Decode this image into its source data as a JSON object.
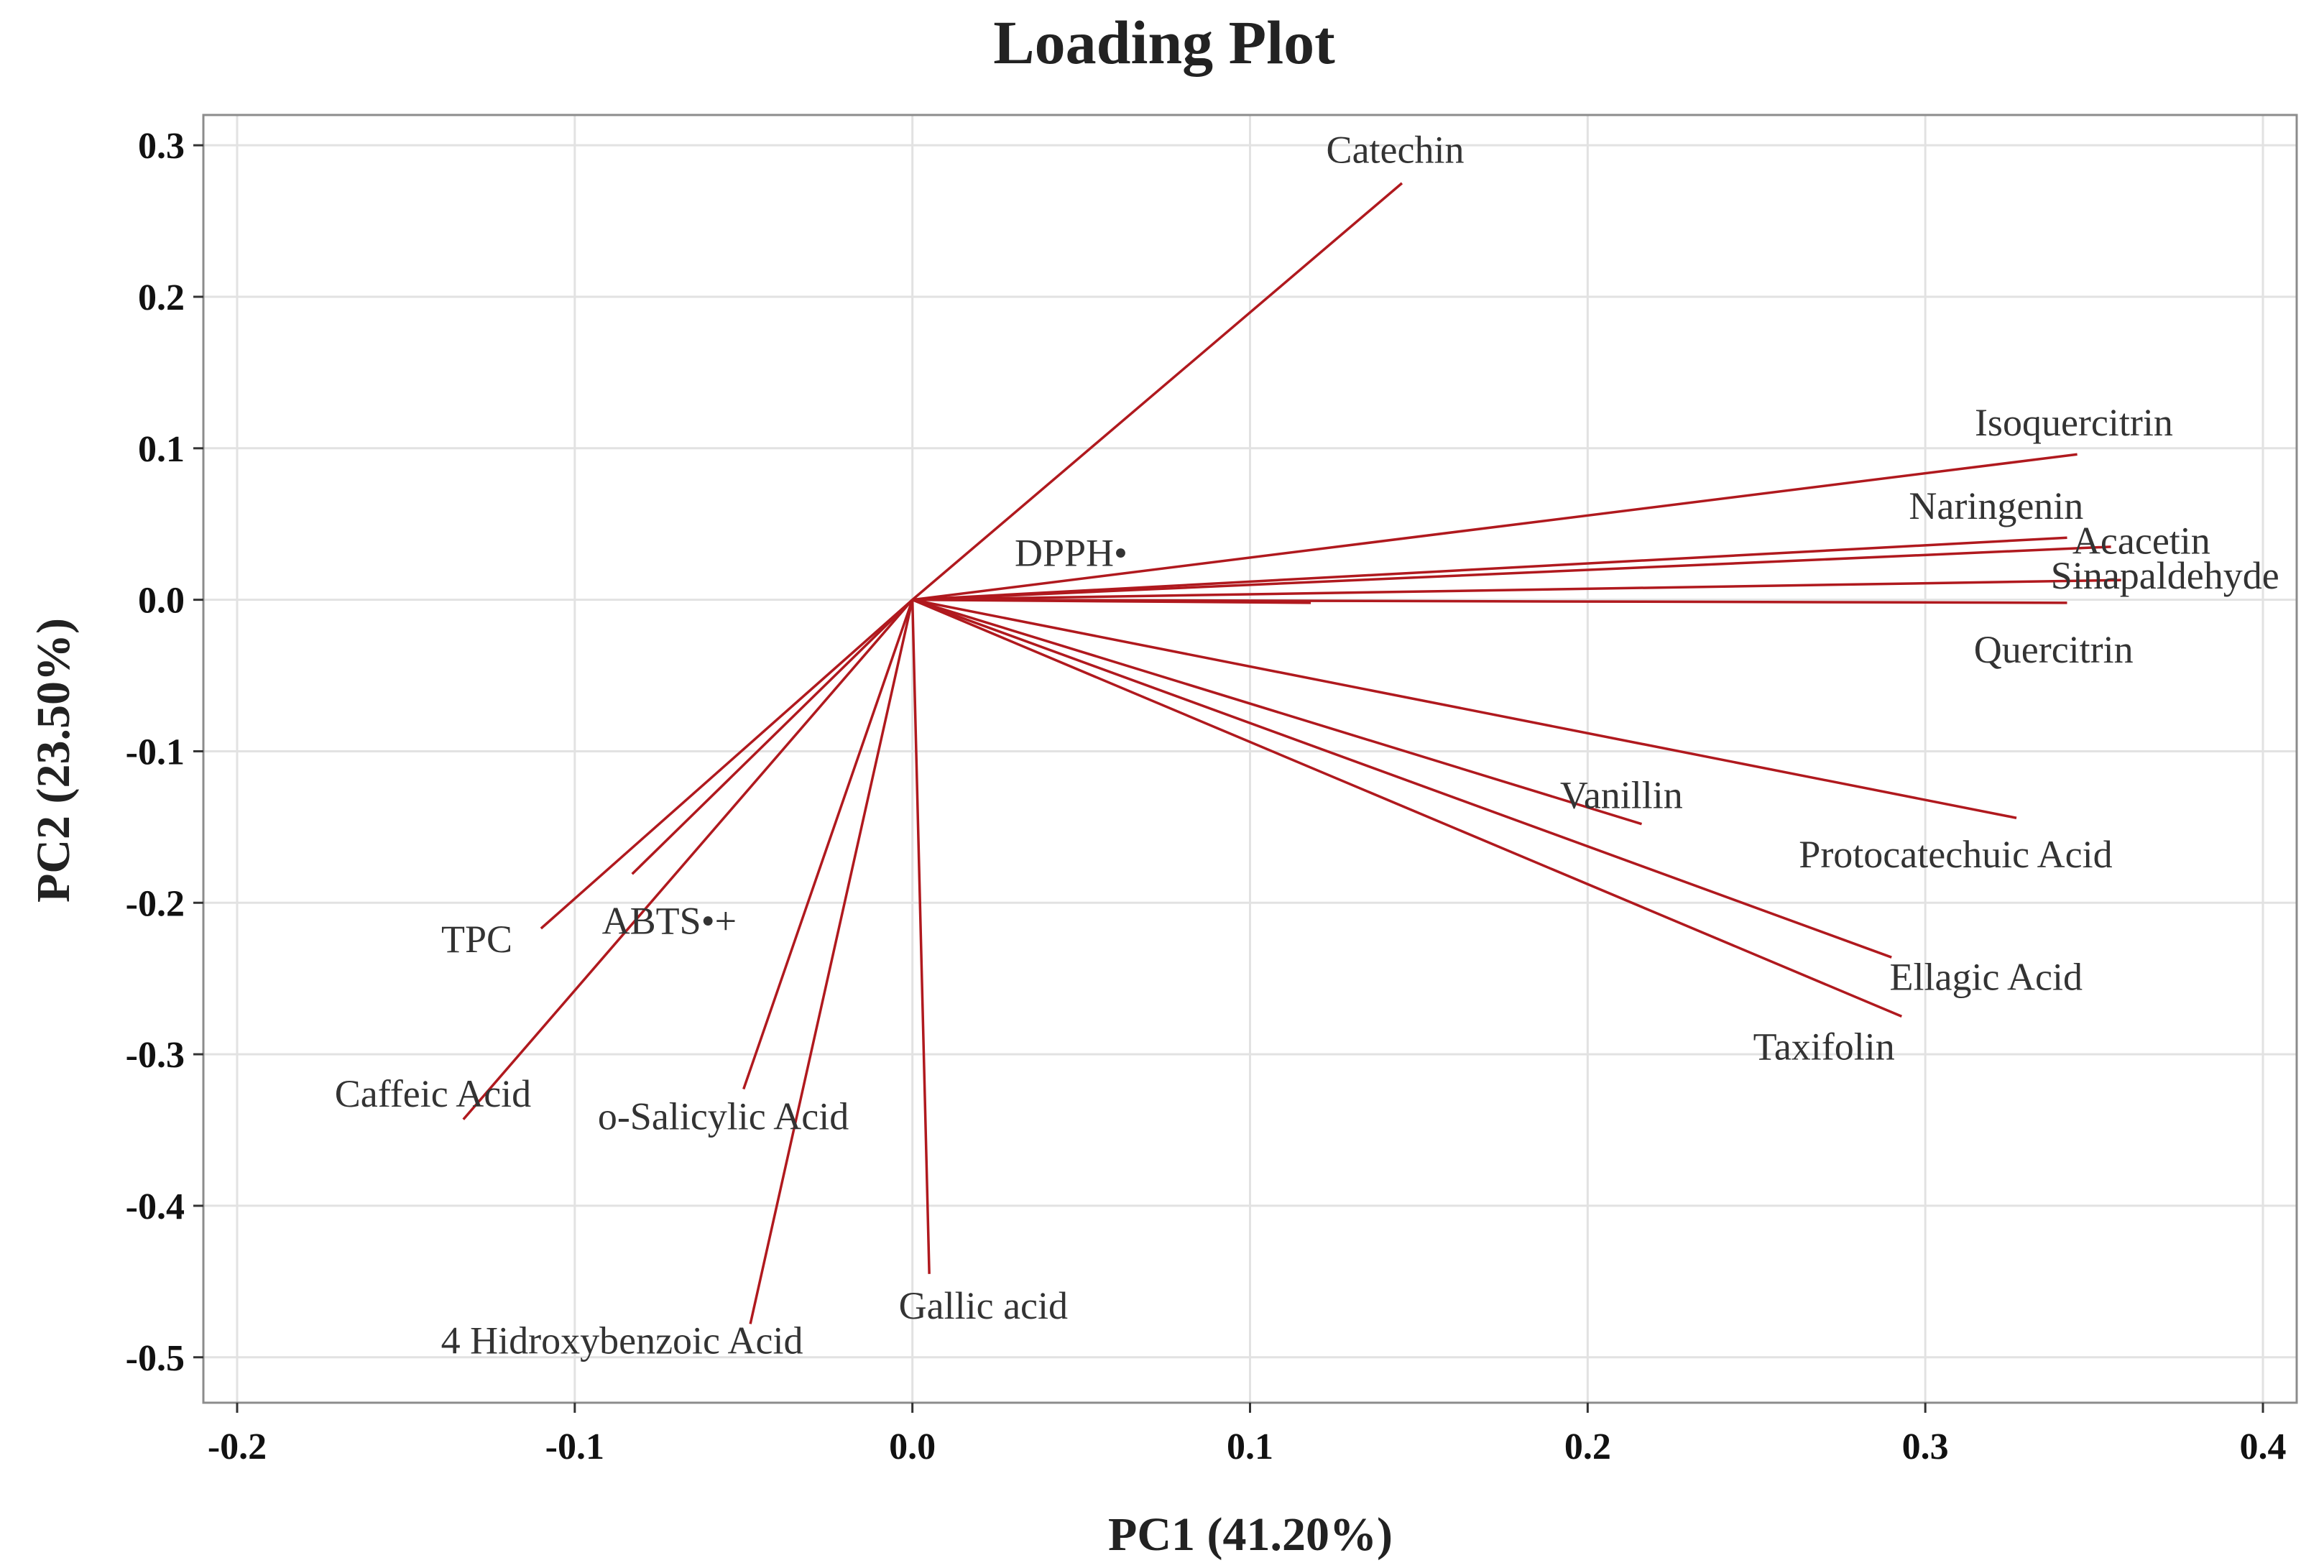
{
  "chart_data": {
    "type": "scatter",
    "subtype": "loading-plot-vectors",
    "title": "Loading Plot",
    "xlabel": "PC1 (41.20%)",
    "ylabel": "PC2 (23.50%)",
    "xlim": [
      -0.21,
      0.41
    ],
    "ylim": [
      -0.53,
      0.32
    ],
    "xticks": [
      -0.2,
      -0.1,
      0.0,
      0.1,
      0.2,
      0.3,
      0.4
    ],
    "xtick_labels": [
      "-0.2",
      "-0.1",
      "0.0",
      "0.1",
      "0.2",
      "0.3",
      "0.4"
    ],
    "yticks": [
      0.3,
      0.2,
      0.1,
      0.0,
      -0.1,
      -0.2,
      -0.3,
      -0.4,
      -0.5
    ],
    "ytick_labels": [
      "0.3",
      "0.2",
      "0.1",
      "0.0",
      "-0.1",
      "-0.2",
      "-0.3",
      "-0.4",
      "-0.5"
    ],
    "grid": true,
    "vector_color": "#b0191e",
    "loadings": [
      {
        "name": "Catechin",
        "x": 0.145,
        "y": 0.275
      },
      {
        "name": "Isoquercitrin",
        "x": 0.345,
        "y": 0.096
      },
      {
        "name": "Naringenin",
        "x": 0.342,
        "y": 0.041
      },
      {
        "name": "Acacetin",
        "x": 0.355,
        "y": 0.035
      },
      {
        "name": "Sinapaldehyde",
        "x": 0.358,
        "y": 0.013
      },
      {
        "name": "Quercitrin",
        "x": 0.342,
        "y": -0.002
      },
      {
        "name": "DPPH•",
        "x": 0.118,
        "y": -0.002
      },
      {
        "name": "Protocatechuic Acid",
        "x": 0.327,
        "y": -0.144
      },
      {
        "name": "Vanillin",
        "x": 0.216,
        "y": -0.148
      },
      {
        "name": "Ellagic Acid",
        "x": 0.29,
        "y": -0.236
      },
      {
        "name": "Taxifolin",
        "x": 0.293,
        "y": -0.275
      },
      {
        "name": "TPC",
        "x": -0.11,
        "y": -0.217
      },
      {
        "name": "ABTS•+",
        "x": -0.083,
        "y": -0.181
      },
      {
        "name": "Caffeic Acid",
        "x": -0.133,
        "y": -0.343
      },
      {
        "name": "o-Salicylic Acid",
        "x": -0.05,
        "y": -0.323
      },
      {
        "name": "4 Hidroxybenzoic Acid",
        "x": -0.048,
        "y": -0.478
      },
      {
        "name": "Gallic acid",
        "x": 0.005,
        "y": -0.445
      }
    ],
    "labels": [
      {
        "text": "Catechin",
        "x": 0.143,
        "y": 0.297
      },
      {
        "text": "Isoquercitrin",
        "x": 0.344,
        "y": 0.117
      },
      {
        "text": "Naringenin",
        "x": 0.321,
        "y": 0.062
      },
      {
        "text": "Acacetin",
        "x": 0.364,
        "y": 0.039
      },
      {
        "text": "Sinapaldehyde",
        "x": 0.371,
        "y": 0.016
      },
      {
        "text": "Quercitrin",
        "x": 0.338,
        "y": -0.033
      },
      {
        "text": "DPPH•",
        "x": 0.047,
        "y": 0.031
      },
      {
        "text": "Protocatechuic Acid",
        "x": 0.309,
        "y": -0.168
      },
      {
        "text": "Vanillin",
        "x": 0.21,
        "y": -0.129
      },
      {
        "text": "Ellagic Acid",
        "x": 0.318,
        "y": -0.249
      },
      {
        "text": "Taxifolin",
        "x": 0.27,
        "y": -0.295
      },
      {
        "text": "TPC",
        "x": -0.129,
        "y": -0.224
      },
      {
        "text": "ABTS•+",
        "x": -0.072,
        "y": -0.212
      },
      {
        "text": "Caffeic Acid",
        "x": -0.142,
        "y": -0.326
      },
      {
        "text": "o-Salicylic Acid",
        "x": -0.056,
        "y": -0.341
      },
      {
        "text": "4 Hidroxybenzoic Acid",
        "x": -0.086,
        "y": -0.489
      },
      {
        "text": "Gallic acid",
        "x": 0.021,
        "y": -0.466
      }
    ]
  }
}
